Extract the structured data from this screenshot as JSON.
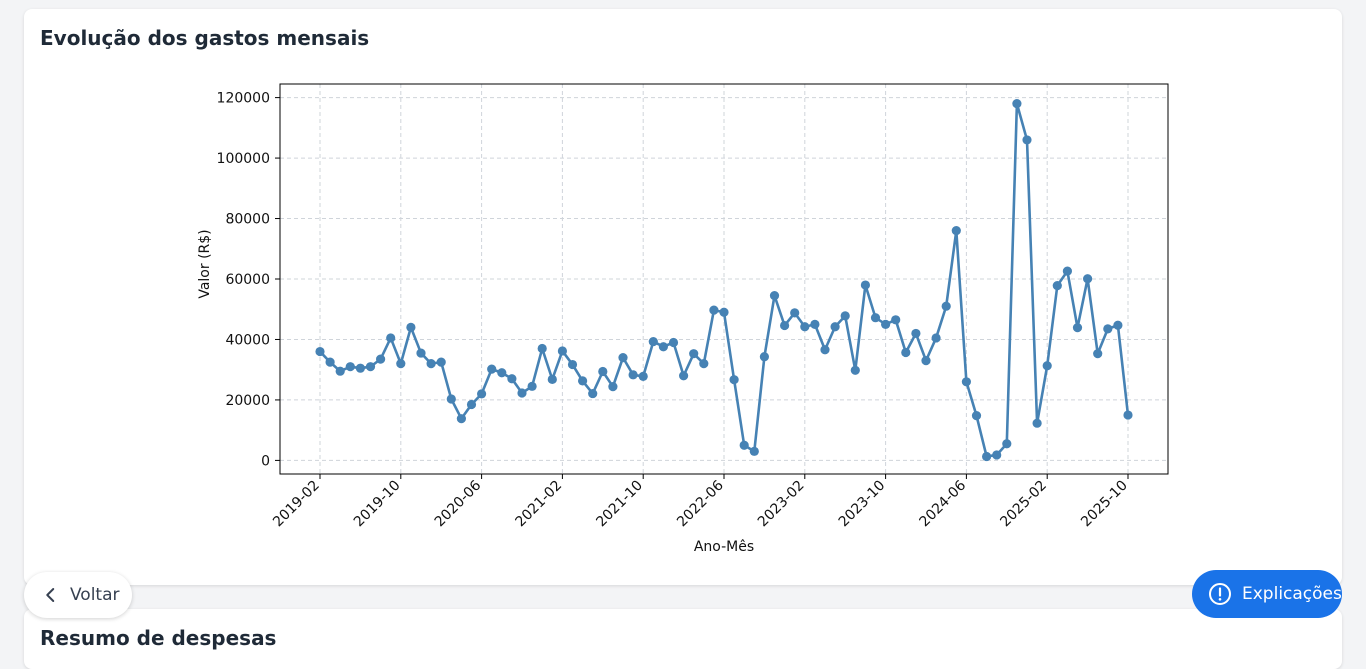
{
  "card": {
    "title": "Evolução dos gastos mensais"
  },
  "card2": {
    "title": "Resumo de despesas"
  },
  "buttons": {
    "back_label": "Voltar",
    "back_icon": "chevron-left-icon",
    "help_label": "Explicações",
    "help_icon": "alert-circle-icon",
    "help_color": "#1a73e8"
  },
  "chart_data": {
    "type": "line",
    "xlabel": "Ano-Mês",
    "ylabel": "Valor (R$)",
    "ylim": [
      -4500,
      124500
    ],
    "yticks": [
      0,
      20000,
      40000,
      60000,
      80000,
      100000,
      120000
    ],
    "xtick_labels": [
      "2019-02",
      "2019-10",
      "2020-06",
      "2021-02",
      "2021-10",
      "2022-06",
      "2023-02",
      "2023-10",
      "2024-06",
      "2025-02",
      "2025-10"
    ],
    "grid": true,
    "line_color": "#4682b4",
    "x": [
      "2019-02",
      "2019-03",
      "2019-04",
      "2019-05",
      "2019-06",
      "2019-07",
      "2019-08",
      "2019-09",
      "2019-10",
      "2019-11",
      "2019-12",
      "2020-01",
      "2020-02",
      "2020-03",
      "2020-04",
      "2020-05",
      "2020-06",
      "2020-07",
      "2020-08",
      "2020-09",
      "2020-10",
      "2020-11",
      "2020-12",
      "2021-01",
      "2021-02",
      "2021-03",
      "2021-04",
      "2021-05",
      "2021-06",
      "2021-07",
      "2021-08",
      "2021-09",
      "2021-10",
      "2021-11",
      "2021-12",
      "2022-01",
      "2022-02",
      "2022-03",
      "2022-04",
      "2022-05",
      "2022-06",
      "2022-07",
      "2022-08",
      "2022-09",
      "2022-10",
      "2022-11",
      "2022-12",
      "2023-01",
      "2023-02",
      "2023-03",
      "2023-04",
      "2023-05",
      "2023-06",
      "2023-07",
      "2023-08",
      "2023-09",
      "2023-10",
      "2023-11",
      "2023-12",
      "2024-01",
      "2024-02",
      "2024-03",
      "2024-04",
      "2024-05",
      "2024-06",
      "2024-07",
      "2024-08",
      "2024-09",
      "2024-10",
      "2024-11",
      "2024-12",
      "2025-01",
      "2025-02",
      "2025-03",
      "2025-04",
      "2025-05",
      "2025-06",
      "2025-07",
      "2025-08",
      "2025-09",
      "2025-10"
    ],
    "values": [
      36000,
      32500,
      29500,
      31000,
      30500,
      31000,
      33500,
      40500,
      32000,
      44000,
      35500,
      32000,
      32500,
      20300,
      13800,
      18500,
      22000,
      30200,
      29000,
      27000,
      22300,
      24500,
      37000,
      26800,
      36200,
      31700,
      26300,
      22100,
      29400,
      24400,
      34000,
      28300,
      27800,
      39300,
      37600,
      39000,
      28000,
      35300,
      32000,
      49700,
      49000,
      26700,
      5000,
      3000,
      34300,
      54500,
      44600,
      48800,
      44200,
      45000,
      36600,
      44200,
      47800,
      29800,
      58000,
      47200,
      45000,
      46500,
      35700,
      42000,
      33000,
      40500,
      51000,
      76000,
      26000,
      14800,
      1300,
      1800,
      5500,
      118000,
      106000,
      12300,
      31300,
      57800,
      62600,
      43900,
      60100,
      35300,
      43500,
      44700,
      15000
    ]
  }
}
